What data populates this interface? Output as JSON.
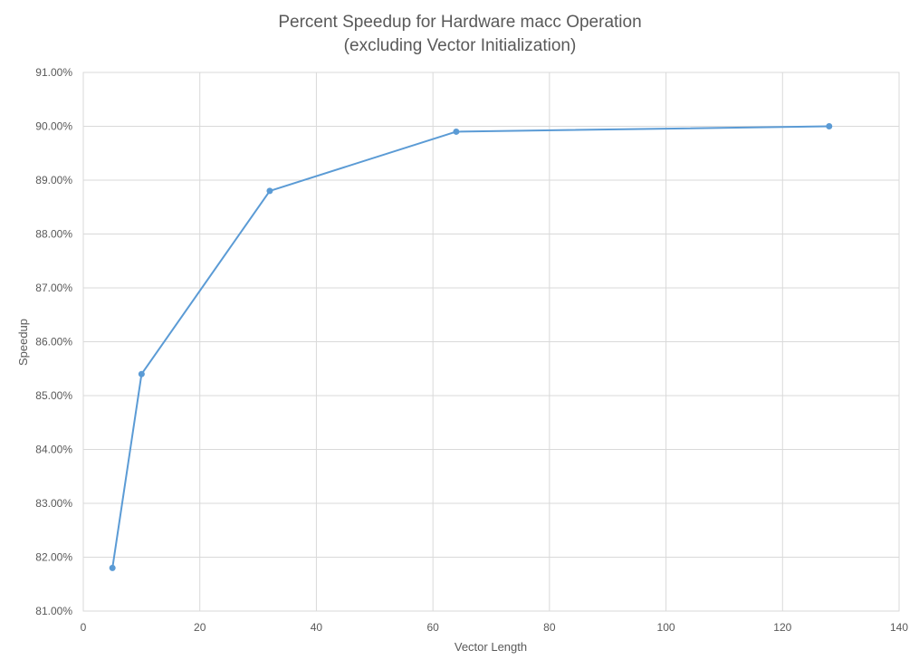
{
  "chart_data": {
    "type": "line",
    "title": "Percent Speedup for Hardware macc Operation",
    "subtitle": "(excluding Vector Initialization)",
    "xlabel": "Vector Length",
    "ylabel": "Speedup",
    "xlim": [
      0,
      140
    ],
    "ylim": [
      0.81,
      0.91
    ],
    "x_ticks": [
      0,
      20,
      40,
      60,
      80,
      100,
      120,
      140
    ],
    "x_tick_labels": [
      "0",
      "20",
      "40",
      "60",
      "80",
      "100",
      "120",
      "140"
    ],
    "y_ticks": [
      0.81,
      0.82,
      0.83,
      0.84,
      0.85,
      0.86,
      0.87,
      0.88,
      0.89,
      0.9,
      0.91
    ],
    "y_tick_labels": [
      "81.00%",
      "82.00%",
      "83.00%",
      "84.00%",
      "85.00%",
      "86.00%",
      "87.00%",
      "88.00%",
      "89.00%",
      "90.00%",
      "91.00%"
    ],
    "grid": true,
    "legend": "none",
    "series": [
      {
        "color": "#5b9bd5",
        "points": [
          {
            "x": 5,
            "y": 0.818
          },
          {
            "x": 10,
            "y": 0.854
          },
          {
            "x": 32,
            "y": 0.888
          },
          {
            "x": 64,
            "y": 0.899
          },
          {
            "x": 128,
            "y": 0.9
          }
        ]
      }
    ]
  }
}
